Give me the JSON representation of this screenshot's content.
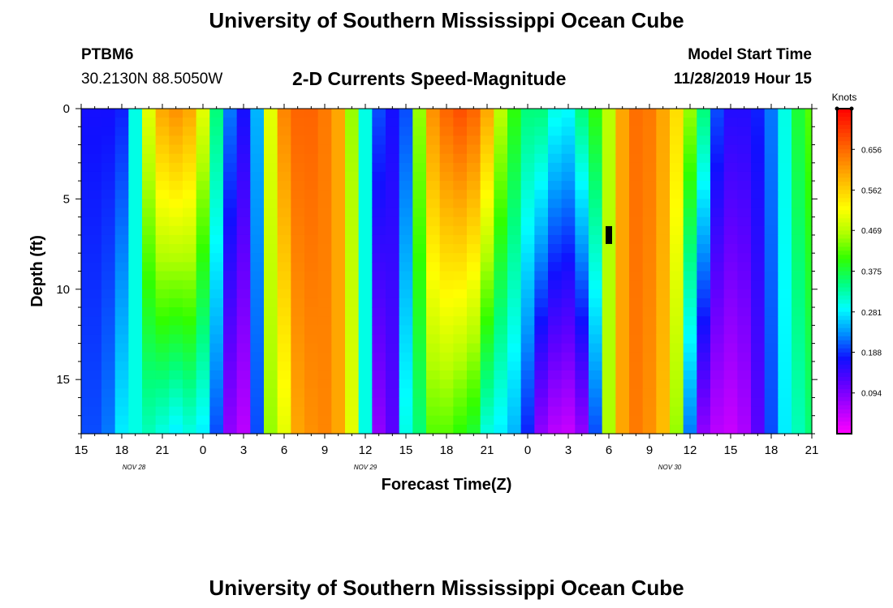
{
  "header": {
    "title": "University of Southern Mississippi Ocean Cube",
    "station_id": "PTBM6",
    "station_coords": "30.2130N 88.5050W",
    "start_label": "Model Start Time",
    "start_value": "11/28/2019 Hour 15"
  },
  "footer": {
    "title": "University of Southern Mississippi Ocean Cube"
  },
  "chart_data": {
    "type": "heatmap",
    "title": "2-D Currents Speed-Magnitude",
    "xlabel": "Forecast Time(Z)",
    "ylabel": "Depth (ft)",
    "x_tick_labels": [
      "15",
      "18",
      "21",
      "0",
      "3",
      "6",
      "9",
      "12",
      "15",
      "18",
      "21",
      "0",
      "3",
      "6",
      "9",
      "12",
      "15",
      "18",
      "21"
    ],
    "date_labels": [
      {
        "label": "NOV 28",
        "tick_index": 1.3
      },
      {
        "label": "NOV 29",
        "tick_index": 7.0
      },
      {
        "label": "NOV 30",
        "tick_index": 14.5
      }
    ],
    "y_tick_labels": [
      "0",
      "5",
      "10",
      "15"
    ],
    "y_ticks": [
      0,
      5,
      10,
      15
    ],
    "ylim": [
      0,
      18
    ],
    "time_range_hours": [
      0,
      54
    ],
    "colorbar": {
      "unit": "Knots",
      "tick_labels": [
        "0.656",
        "0.562",
        "0.469",
        "0.375",
        "0.281",
        "0.188",
        "0.094"
      ],
      "ticks": [
        0.656,
        0.562,
        0.469,
        0.375,
        0.281,
        0.188,
        0.094
      ],
      "range": [
        0.0,
        0.75
      ],
      "colors": [
        "#ff00ff",
        "#b000ff",
        "#6000ff",
        "#1010ff",
        "#0090ff",
        "#00ffff",
        "#00ff80",
        "#30ff00",
        "#b0ff00",
        "#ffff00",
        "#ffc000",
        "#ff8000",
        "#ff4000",
        "#ff0000"
      ]
    },
    "column_profiles": {
      "hours": [
        0,
        1,
        2,
        3,
        4,
        5,
        6,
        7,
        8,
        9,
        10,
        11,
        12,
        13,
        14,
        15,
        16,
        17,
        18,
        19,
        20,
        21,
        22,
        23,
        24,
        25,
        26,
        27,
        28,
        29,
        30,
        31,
        32,
        33,
        34,
        35,
        36,
        37,
        38,
        39,
        40,
        41,
        42,
        43,
        44,
        45,
        46,
        47,
        48,
        49,
        50,
        51,
        52,
        53,
        54
      ],
      "surface_speed": [
        0.17,
        0.17,
        0.17,
        0.18,
        0.3,
        0.5,
        0.6,
        0.62,
        0.6,
        0.5,
        0.35,
        0.22,
        0.17,
        0.25,
        0.5,
        0.63,
        0.66,
        0.66,
        0.64,
        0.6,
        0.45,
        0.3,
        0.2,
        0.17,
        0.2,
        0.45,
        0.62,
        0.66,
        0.68,
        0.66,
        0.6,
        0.47,
        0.4,
        0.35,
        0.35,
        0.3,
        0.29,
        0.35,
        0.4,
        0.47,
        0.6,
        0.65,
        0.64,
        0.6,
        0.55,
        0.45,
        0.35,
        0.2,
        0.16,
        0.16,
        0.18,
        0.22,
        0.3,
        0.38,
        0.42
      ],
      "bottom_speed": [
        0.2,
        0.2,
        0.22,
        0.28,
        0.3,
        0.32,
        0.3,
        0.28,
        0.3,
        0.28,
        0.2,
        0.08,
        0.05,
        0.2,
        0.45,
        0.5,
        0.6,
        0.62,
        0.63,
        0.6,
        0.5,
        0.3,
        0.08,
        0.12,
        0.3,
        0.35,
        0.42,
        0.42,
        0.4,
        0.38,
        0.3,
        0.28,
        0.25,
        0.18,
        0.08,
        0.05,
        0.04,
        0.08,
        0.2,
        0.46,
        0.6,
        0.64,
        0.62,
        0.58,
        0.45,
        0.22,
        0.08,
        0.05,
        0.04,
        0.06,
        0.12,
        0.2,
        0.28,
        0.32,
        0.35
      ]
    },
    "marker": {
      "hour": 39,
      "depth": 7
    }
  }
}
